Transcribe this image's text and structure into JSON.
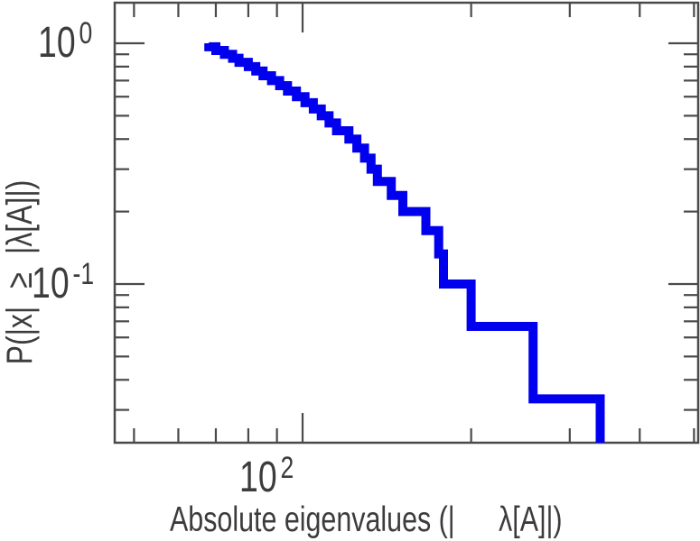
{
  "chart_data": {
    "type": "line",
    "subtype": "step-ccdf",
    "title": "",
    "xlabel": "Absolute eigenvalues (| λ[A]|)",
    "ylabel": "P(|x| ≥ |λ[A]|)",
    "xscale": "log",
    "yscale": "log",
    "xlim": [
      46,
      509
    ],
    "ylim": [
      0.0219,
      1.474
    ],
    "grid": false,
    "legend": null,
    "x_major_ticks": [
      100
    ],
    "x_minor_ticks": [
      50,
      60,
      70,
      80,
      90,
      200,
      300,
      400,
      500
    ],
    "y_major_ticks": [
      1,
      0.1
    ],
    "y_minor_ticks": [
      0.9,
      0.8,
      0.7,
      0.6,
      0.5,
      0.4,
      0.3,
      0.2,
      0.09,
      0.08,
      0.07,
      0.06,
      0.05,
      0.04,
      0.03
    ],
    "series": [
      {
        "name": "absolute-eigenvalue-ccdf",
        "color": "#0000ee",
        "line_width": 10,
        "n_points": 30,
        "ccdf_step": 0.03333,
        "sorted_abs_eigenvalues": [
          68,
          70,
          72.5,
          75,
          77,
          80,
          82.5,
          85,
          88,
          91,
          94,
          97.5,
          101,
          104.5,
          108,
          111.5,
          115,
          121,
          125,
          129,
          132.5,
          136,
          144,
          151,
          166,
          175,
          178.5,
          200,
          258,
          340
        ]
      }
    ]
  },
  "labels": {
    "x_tick": {
      "base": "10",
      "exp": "2"
    },
    "y_tick_top": {
      "base": "10",
      "exp": "0"
    },
    "y_tick_bottom": {
      "base": "10",
      "exp": "-1"
    },
    "xlabel_part1": "Absolute eigenvalues (|",
    "xlabel_part2": "λ[A]|)",
    "ylabel": "P(|x| ≥ |λ[A]|)"
  },
  "style": {
    "spine_color": "#4a4a4a",
    "tick_color": "#4a4a4a",
    "text_color": "#3c3c3c",
    "background": "#ffffff"
  }
}
